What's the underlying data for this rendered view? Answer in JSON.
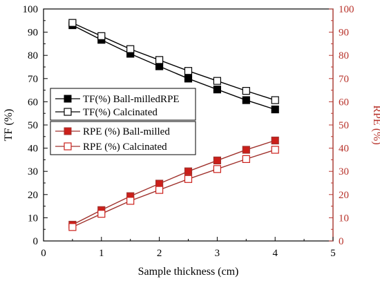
{
  "chart_data": {
    "type": "line",
    "xlabel": "Sample thickness (cm)",
    "ylabel_left": "TF (%)",
    "ylabel_right": "RPE (%)",
    "xlim": [
      0,
      5
    ],
    "ylim_left": [
      0,
      100
    ],
    "ylim_right": [
      0,
      100
    ],
    "x_ticks": [
      "0",
      "1",
      "2",
      "3",
      "4",
      "5"
    ],
    "y_ticks_left": [
      "0",
      "10",
      "20",
      "30",
      "40",
      "50",
      "60",
      "70",
      "80",
      "90",
      "100"
    ],
    "y_ticks_right": [
      "0",
      "10",
      "20",
      "30",
      "40",
      "50",
      "60",
      "70",
      "80",
      "90",
      "100"
    ],
    "grid": false,
    "colors": {
      "tf": "#000000",
      "rpe_line": "#a0322d",
      "rpe_marker": "#cc1f1a",
      "right_axis": "#b8322a"
    },
    "series": [
      {
        "name": "TF(%) Ball-milledRPE",
        "axis": "left",
        "marker": "filled-square",
        "color": "#000000",
        "x": [
          0.5,
          1.0,
          1.5,
          2.0,
          2.5,
          3.0,
          3.5,
          4.0
        ],
        "y": [
          93.0,
          86.7,
          80.7,
          75.3,
          70.0,
          65.3,
          60.7,
          56.7
        ]
      },
      {
        "name": "TF(%) Calcinated",
        "axis": "left",
        "marker": "open-square",
        "color": "#000000",
        "x": [
          0.5,
          1.0,
          1.5,
          2.0,
          2.5,
          3.0,
          3.5,
          4.0
        ],
        "y": [
          94.0,
          88.3,
          82.7,
          78.0,
          73.3,
          69.0,
          64.7,
          60.7
        ]
      },
      {
        "name": "RPE (%) Ball-milled",
        "axis": "right",
        "marker": "filled-square",
        "color": "#cc1f1a",
        "x": [
          0.5,
          1.0,
          1.5,
          2.0,
          2.5,
          3.0,
          3.5,
          4.0
        ],
        "y": [
          7.0,
          13.3,
          19.3,
          24.7,
          30.0,
          34.7,
          39.3,
          43.3
        ]
      },
      {
        "name": "RPE (%) Calcinated",
        "axis": "right",
        "marker": "open-square",
        "color": "#cc1f1a",
        "x": [
          0.5,
          1.0,
          1.5,
          2.0,
          2.5,
          3.0,
          3.5,
          4.0
        ],
        "y": [
          6.0,
          11.7,
          17.3,
          22.0,
          26.7,
          31.0,
          35.3,
          39.3
        ]
      }
    ],
    "legend": [
      {
        "label": "TF(%) Ball-milledRPE",
        "placement": "middle-left"
      },
      {
        "label": "TF(%) Calcinated",
        "placement": "middle-left"
      },
      {
        "label": "RPE (%) Ball-milled",
        "placement": "middle-left"
      },
      {
        "label": "RPE (%) Calcinated",
        "placement": "middle-left"
      }
    ]
  }
}
